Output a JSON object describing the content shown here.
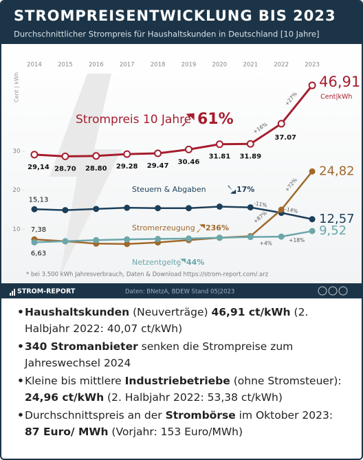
{
  "chart_data": {
    "type": "line",
    "title": "STROMPREISENTWICKLUNG BIS 2023",
    "subtitle": "Durchschnittlicher Strompreis für Haushaltskunden in Deutschland [10 Jahre]",
    "y_label": "Cent | kWh",
    "unit_label": "Cent|kWh",
    "categories": [
      "2014",
      "2015",
      "2016",
      "2017",
      "2018",
      "2019",
      "2020",
      "2021",
      "2022",
      "2023"
    ],
    "ylim": [
      3,
      48
    ],
    "yticks": [
      10,
      20,
      30
    ],
    "series": [
      {
        "name": "Strompreis 10 Jahre",
        "total_change": "61%",
        "color": "#a51d2d",
        "values": [
          29.14,
          28.7,
          28.8,
          29.28,
          29.47,
          30.46,
          31.81,
          31.89,
          37.07,
          46.91
        ],
        "value_labels": [
          "29,14",
          "28.70",
          "28.80",
          "29.28",
          "29.47",
          "30.46",
          "31.81",
          "31.89",
          "37.07",
          "46,91"
        ],
        "change_labels": [
          "+16%",
          "+27%"
        ]
      },
      {
        "name": "Steuern & Abgaben",
        "total_change": "17%",
        "color": "#1c3f5a",
        "values": [
          15.13,
          14.9,
          15.2,
          15.5,
          15.4,
          15.4,
          15.8,
          15.6,
          14.2,
          12.57
        ],
        "value_labels": [
          "15,13",
          null,
          null,
          null,
          null,
          null,
          null,
          null,
          null,
          "12,57"
        ],
        "change_labels": [
          "-11%",
          "-14%"
        ]
      },
      {
        "name": "Stromerzeugung",
        "total_change": "236%",
        "color": "#a0682a",
        "values": [
          7.38,
          6.9,
          6.3,
          6.2,
          6.6,
          7.2,
          7.8,
          8.2,
          15.0,
          24.82
        ],
        "value_labels": [
          "7,38",
          null,
          null,
          null,
          null,
          null,
          null,
          null,
          null,
          "24,82"
        ],
        "change_labels": [
          "+87%",
          "+72%"
        ]
      },
      {
        "name": "Netzentgelte",
        "total_change": "44%",
        "color": "#6aa6aa",
        "values": [
          6.63,
          6.9,
          7.2,
          7.4,
          7.5,
          7.6,
          7.8,
          8.0,
          8.1,
          9.52
        ],
        "value_labels": [
          "6,63",
          null,
          null,
          null,
          null,
          null,
          null,
          null,
          null,
          "9,52"
        ],
        "change_labels": [
          "+4%",
          "+18%"
        ]
      }
    ],
    "footnote": "* bei 3.500 kWh Jahresverbrauch, Daten & Download https://strom-report.com/.arz"
  },
  "footer": {
    "brand": "STROM-REPORT",
    "source": "Daten: BNetzA, BDEW  Stand 05|2023"
  },
  "bullets": [
    [
      {
        "text": "Haushaltskunden",
        "bold": true
      },
      {
        "text": " (Neuverträge) ",
        "bold": false
      },
      {
        "text": "46,91 ct/kWh",
        "bold": true
      },
      {
        "text": " (2. Halbjahr 2022: 40,07 ct/kWh)",
        "bold": false
      }
    ],
    [
      {
        "text": "340 Stromanbieter",
        "bold": true
      },
      {
        "text": " senken die Strompreise zum Jahreswechsel 2024",
        "bold": false
      }
    ],
    [
      {
        "text": "Kleine bis mittlere ",
        "bold": false
      },
      {
        "text": "Industriebetriebe",
        "bold": true
      },
      {
        "text": " (ohne Stromsteuer): ",
        "bold": false
      },
      {
        "text": "24,96 ct/kWh",
        "bold": true
      },
      {
        "text": " (2. Halbjahr 2022: 53,38 ct/kWh)",
        "bold": false
      }
    ],
    [
      {
        "text": "Durchschnittspreis an der ",
        "bold": false
      },
      {
        "text": "Strombörse",
        "bold": true
      },
      {
        "text": " im Oktober 2023: ",
        "bold": false
      },
      {
        "text": "87 Euro/ MWh",
        "bold": true
      },
      {
        "text": " (Vorjahr: 153 Euro/MWh)",
        "bold": false
      }
    ]
  ]
}
